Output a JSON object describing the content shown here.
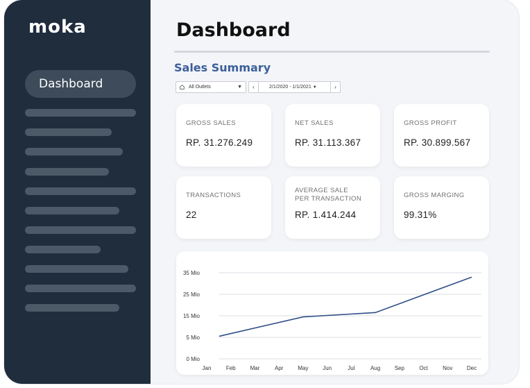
{
  "brand": {
    "logo_text": "moka"
  },
  "sidebar": {
    "active_item": "Dashboard"
  },
  "header": {
    "title": "Dashboard"
  },
  "section": {
    "title": "Sales Summary"
  },
  "filters": {
    "outlet_value": "All Outlets",
    "date_range": "2/1/2020 - 1/1/2021",
    "prev_icon": "chevron-left-icon",
    "next_icon": "chevron-right-icon"
  },
  "metrics": [
    {
      "label": "GROSS SALES",
      "value": "RP. 31.276.249"
    },
    {
      "label": "NET SALES",
      "value": "RP. 31.113.367"
    },
    {
      "label": "GROSS PROFIT",
      "value": "RP. 30.899.567"
    },
    {
      "label": "TRANSACTIONS",
      "value": "22"
    },
    {
      "label_line1": "AVERAGE SALE",
      "label_line2": "PER TRANSACTION",
      "value": "RP. 1.414.244"
    },
    {
      "label": "GROSS MARGING",
      "value": "99.31%"
    }
  ],
  "colors": {
    "sidebar": "#1f2d3d",
    "accent": "#3d5f9a",
    "line": "#2f4f86"
  },
  "chart_data": {
    "type": "line",
    "title": "",
    "xlabel": "",
    "ylabel": "",
    "categories": [
      "Jan",
      "Feb",
      "Mar",
      "Apr",
      "May",
      "Jun",
      "Jul",
      "Aug",
      "Sep",
      "Oct",
      "Nov",
      "Dec"
    ],
    "y_ticks": [
      "0 Mio",
      "5 Mio",
      "15 Mio",
      "25 Mio",
      "35 Mio"
    ],
    "ylim": [
      0,
      40
    ],
    "grid": true,
    "series": [
      {
        "values": [
          5.5,
          null,
          null,
          null,
          14.5,
          null,
          null,
          16.5,
          null,
          null,
          null,
          33
        ]
      }
    ]
  }
}
